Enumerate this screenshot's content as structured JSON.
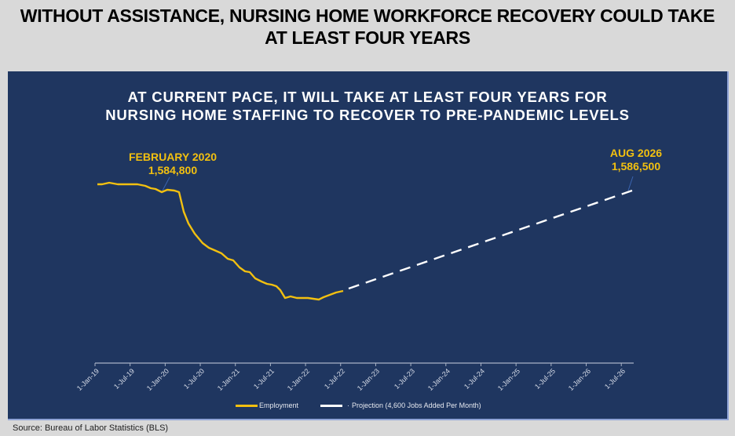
{
  "title": "WITHOUT ASSISTANCE, NURSING HOME WORKFORCE RECOVERY COULD TAKE AT LEAST FOUR YEARS",
  "title_lines": [
    "WITHOUT ASSISTANCE, NURSING HOME WORKFORCE RECOVERY COULD TAKE",
    "AT LEAST FOUR YEARS"
  ],
  "subtitle_lines": [
    "AT CURRENT PACE, IT WILL TAKE AT LEAST FOUR YEARS FOR",
    "NURSING HOME STAFFING TO RECOVER TO PRE-PANDEMIC LEVELS"
  ],
  "callouts": {
    "start": {
      "label": "FEBRUARY 2020",
      "value": "1,584,800"
    },
    "end": {
      "label": "AUG 2026",
      "value": "1,586,500"
    }
  },
  "legend": {
    "employment": "Employment",
    "projection": "Projection (4,600 Jobs Added Per Month)"
  },
  "source": "Source: Bureau of Labor Statistics (BLS)",
  "colors": {
    "background": "#d9d9d9",
    "panel": "#1f3660",
    "employment": "#f2c010",
    "projection": "#ffffff",
    "callout_text": "#f2c010"
  },
  "chart_data": {
    "type": "line",
    "title": "AT CURRENT PACE, IT WILL TAKE AT LEAST FOUR YEARS FOR NURSING HOME STAFFING TO RECOVER TO PRE-PANDEMIC LEVELS",
    "xlabel": "",
    "ylabel": "",
    "x_tick_labels": [
      "1-Jan-19",
      "1-Jul-19",
      "1-Jan-20",
      "1-Jul-20",
      "1-Jan-21",
      "1-Jul-21",
      "1-Jan-22",
      "1-Jul-22",
      "1-Jan-23",
      "1-Jul-23",
      "1-Jan-24",
      "1-Jul-24",
      "1-Jan-25",
      "1-Jul-25",
      "1-Jan-26",
      "1-Jul-26"
    ],
    "y_axis_visible": false,
    "grid": false,
    "legend_position": "bottom",
    "series": [
      {
        "name": "Employment",
        "style": "solid",
        "x": [
          "2019-01",
          "2019-02",
          "2019-03",
          "2019-04",
          "2019-05",
          "2019-06",
          "2019-07",
          "2019-08",
          "2019-09",
          "2019-10",
          "2019-11",
          "2019-12",
          "2020-01",
          "2020-02",
          "2020-03",
          "2020-04",
          "2020-05",
          "2020-06",
          "2020-07",
          "2020-08",
          "2020-09",
          "2020-10",
          "2020-11",
          "2020-12",
          "2021-01",
          "2021-02",
          "2021-03",
          "2021-04",
          "2021-05",
          "2021-06",
          "2021-07",
          "2021-08",
          "2021-09",
          "2021-10",
          "2021-11",
          "2021-12",
          "2022-01",
          "2022-02",
          "2022-03",
          "2022-04",
          "2022-05",
          "2022-06",
          "2022-07"
        ],
        "values": [
          1600500,
          1600500,
          1603000,
          1601500,
          1600500,
          1600500,
          1600200,
          1599500,
          1598000,
          1595000,
          1594500,
          1590000,
          1587500,
          1584800,
          1588000,
          1588000,
          1585000,
          1540000,
          1515000,
          1498000,
          1485000,
          1475000,
          1468000,
          1462000,
          1455000,
          1448000,
          1438000,
          1433000,
          1423000,
          1418000,
          1410000,
          1404000,
          1400000,
          1396000,
          1394000,
          1385000,
          1370000,
          1373000,
          1370000,
          1370000,
          1369000,
          1369000,
          1366000
        ],
        "values_note_tail": [
          1366000,
          1372000,
          1376000,
          1380000,
          1383000,
          1386000
        ]
      },
      {
        "name": "Projection (4,600 Jobs Added Per Month)",
        "style": "dashed",
        "x": [
          "2022-07",
          "2026-08"
        ],
        "values": [
          1361100,
          1586500
        ]
      }
    ],
    "annotations": [
      {
        "x": "2020-02",
        "text": "FEBRUARY 2020 1,584,800"
      },
      {
        "x": "2026-08",
        "text": "AUG 2026 1,586,500"
      }
    ]
  }
}
